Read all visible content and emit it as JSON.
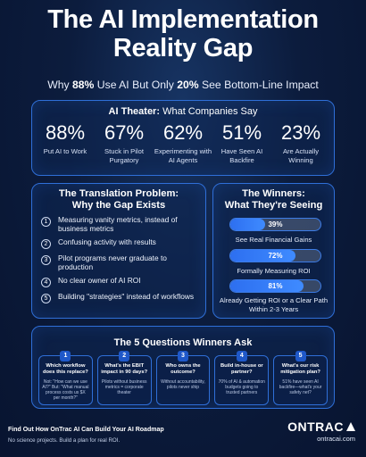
{
  "header": {
    "title_line1": "The AI Implementation",
    "title_line2": "Reality Gap",
    "subtitle_pre": "Why ",
    "subtitle_pct1": "88%",
    "subtitle_mid": " Use AI But Only ",
    "subtitle_pct2": "20%",
    "subtitle_post": " See Bottom-Line Impact"
  },
  "theater": {
    "heading_bold": "AI Theater:",
    "heading_rest": " What Companies Say",
    "stats": [
      {
        "value": "88%",
        "label": "Put AI to Work"
      },
      {
        "value": "67%",
        "label": "Stuck in Pilot Purgatory"
      },
      {
        "value": "62%",
        "label": "Experimenting with AI Agents"
      },
      {
        "value": "51%",
        "label": "Have Seen AI Backfire"
      },
      {
        "value": "23%",
        "label": "Are Actually Winning"
      }
    ]
  },
  "translation": {
    "title_line1": "The Translation Problem:",
    "title_line2": "Why the Gap Exists",
    "items": [
      {
        "num": "1",
        "text": "Measuring vanity metrics, instead of business metrics"
      },
      {
        "num": "2",
        "text": "Confusing activity with results"
      },
      {
        "num": "3",
        "text": "Pilot programs never graduate to production"
      },
      {
        "num": "4",
        "text": "No clear owner of AI ROI"
      },
      {
        "num": "5",
        "text": "Building \"strategies\" instead of workflows"
      }
    ]
  },
  "winners": {
    "title_line1": "The Winners:",
    "title_line2": "What They're Seeing",
    "bars": [
      {
        "pct_label": "39%",
        "fraction": 0.39,
        "label": "See Real Financial Gains"
      },
      {
        "pct_label": "72%",
        "fraction": 0.72,
        "label": "Formally Measuring ROI"
      },
      {
        "pct_label": "81%",
        "fraction": 0.81,
        "label": "Already Getting ROI or a Clear Path Within 2-3 Years"
      }
    ]
  },
  "questions": {
    "title": "The 5 Questions Winners Ask",
    "cards": [
      {
        "num": "1",
        "question": "Which workflow does this replace?",
        "answer": "Not: \"How can we use AI?\" But: \"What manual process costs us $X per month?\""
      },
      {
        "num": "2",
        "question": "What's the EBIT impact in 90 days?",
        "answer": "Pilots without business metrics = corporate theater"
      },
      {
        "num": "3",
        "question": "Who owns the outcome?",
        "answer": "Without accountability, pilots never ship"
      },
      {
        "num": "4",
        "question": "Build in-house or partner?",
        "answer": "70% of AI & automation budgets going to trusted partners"
      },
      {
        "num": "5",
        "question": "What's our risk mitigation plan?",
        "answer": "51% have seen AI backfire—what's your safety net?"
      }
    ]
  },
  "footer": {
    "cta": "Find Out How OnTrac AI Can Build Your AI Roadmap",
    "sub": "No science projects. Build a plan for real ROI.",
    "brand": "ONTRAC",
    "url": "ontracai.com"
  }
}
